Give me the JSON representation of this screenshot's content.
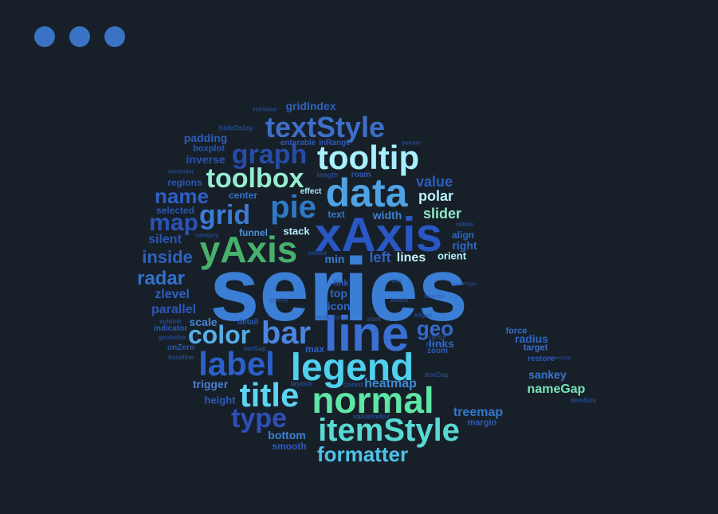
{
  "window": {
    "controls": [
      {
        "name": "window-close-dot",
        "color": "#3a73c4"
      },
      {
        "name": "window-minimize-dot",
        "color": "#3a73c4"
      },
      {
        "name": "window-maximize-dot",
        "color": "#3a73c4"
      }
    ]
  },
  "word_cloud": {
    "words": [
      {
        "text": "series",
        "color": "#3b7ed6"
      },
      {
        "text": "xAxis",
        "color": "#2957c3"
      },
      {
        "text": "data",
        "color": "#4fa3e4"
      },
      {
        "text": "line",
        "color": "#3a6fd4"
      },
      {
        "text": "legend",
        "color": "#4fd0ee"
      },
      {
        "text": "normal",
        "color": "#5ee6a7"
      },
      {
        "text": "itemStyle",
        "color": "#58d8d2"
      },
      {
        "text": "yAxis",
        "color": "#49b06c"
      },
      {
        "text": "tooltip",
        "color": "#a7f0ff"
      },
      {
        "text": "textStyle",
        "color": "#3d6fc8"
      },
      {
        "text": "label",
        "color": "#2c60c8"
      },
      {
        "text": "title",
        "color": "#5cd4f2"
      },
      {
        "text": "bar",
        "color": "#4a86e0"
      },
      {
        "text": "pie",
        "color": "#2f7ac6"
      },
      {
        "text": "color",
        "color": "#56aee8"
      },
      {
        "text": "toolbox",
        "color": "#96ecd0"
      },
      {
        "text": "type",
        "color": "#2f4fb8"
      },
      {
        "text": "grid",
        "color": "#3b7bd1"
      },
      {
        "text": "graph",
        "color": "#274ba8"
      },
      {
        "text": "formatter",
        "color": "#4fc2ea"
      },
      {
        "text": "map",
        "color": "#2a53b4"
      },
      {
        "text": "name",
        "color": "#2f5ec7"
      },
      {
        "text": "geo",
        "color": "#3569c9"
      },
      {
        "text": "radar",
        "color": "#3470cd"
      },
      {
        "text": "inside",
        "color": "#2f62c0"
      },
      {
        "text": "polar",
        "color": "#b9f2ff"
      },
      {
        "text": "slider",
        "color": "#92e7c5"
      },
      {
        "text": "value",
        "color": "#2d5ec2"
      },
      {
        "text": "heatmap",
        "color": "#3e8bd6"
      },
      {
        "text": "treemap",
        "color": "#3377cd"
      },
      {
        "text": "lines",
        "color": "#c8f3ff"
      },
      {
        "text": "left",
        "color": "#2f63c4"
      },
      {
        "text": "silent",
        "color": "#2a56b8"
      },
      {
        "text": "parallel",
        "color": "#2b57b8"
      },
      {
        "text": "zlevel",
        "color": "#2d5fbf"
      },
      {
        "text": "scale",
        "color": "#4a86d6"
      },
      {
        "text": "sankey",
        "color": "#3a76cd"
      },
      {
        "text": "nameGap",
        "color": "#78e3b8"
      },
      {
        "text": "bottom",
        "color": "#3d80d4"
      },
      {
        "text": "trigger",
        "color": "#4a7fd0"
      },
      {
        "text": "padding",
        "color": "#2d5cbb"
      },
      {
        "text": "inverse",
        "color": "#2a52b1"
      },
      {
        "text": "regions",
        "color": "#2b55b6"
      },
      {
        "text": "selected",
        "color": "#2b55b6"
      },
      {
        "text": "center",
        "color": "#3670c6"
      },
      {
        "text": "gridIndex",
        "color": "#2f62be"
      },
      {
        "text": "boxplot",
        "color": "#2d58b6"
      },
      {
        "text": "width",
        "color": "#3d7ed0"
      },
      {
        "text": "align",
        "color": "#2f67c4"
      },
      {
        "text": "right",
        "color": "#2f67c4"
      },
      {
        "text": "orient",
        "color": "#b5efff"
      },
      {
        "text": "stack",
        "color": "#b9f0ff"
      },
      {
        "text": "funnel",
        "color": "#4a90d8"
      },
      {
        "text": "min",
        "color": "#3c7bd0"
      },
      {
        "text": "max",
        "color": "#2e60c0"
      },
      {
        "text": "top",
        "color": "#2f66c3"
      },
      {
        "text": "icon",
        "color": "#2f66c3"
      },
      {
        "text": "link",
        "color": "#2b58b6"
      },
      {
        "text": "height",
        "color": "#2c5ab8"
      },
      {
        "text": "smooth",
        "color": "#2d5bb8"
      },
      {
        "text": "margin",
        "color": "#2d5bb8"
      },
      {
        "text": "zoom",
        "color": "#2d5bb8"
      },
      {
        "text": "links",
        "color": "#2f66c3"
      },
      {
        "text": "radius",
        "color": "#2f66c3"
      },
      {
        "text": "force",
        "color": "#3a6fc8"
      },
      {
        "text": "target",
        "color": "#3a6fc8"
      },
      {
        "text": "restore",
        "color": "#2c58b4"
      },
      {
        "text": "text",
        "color": "#3a78cc"
      },
      {
        "text": "effect",
        "color": "#b0eeff"
      },
      {
        "text": "roam",
        "color": "#2c58b4"
      },
      {
        "text": "length",
        "color": "#2c58b4"
      },
      {
        "text": "enterable",
        "color": "#2c58b4"
      },
      {
        "text": "hideDelay",
        "color": "#2c58b4"
      },
      {
        "text": "inRange",
        "color": "#2c58b4"
      },
      {
        "text": "detail",
        "color": "#2c58b4"
      },
      {
        "text": "realtime",
        "color": "#2c58b4"
      },
      {
        "text": "sublink",
        "color": "#2c58b4"
      },
      {
        "text": "indicator",
        "color": "#2c58b4"
      },
      {
        "text": "geoIndex",
        "color": "#2c58b4"
      },
      {
        "text": "onZero",
        "color": "#2c58b4"
      },
      {
        "text": "baseline",
        "color": "#2c58b4"
      },
      {
        "text": "barGap",
        "color": "#2c58b4"
      },
      {
        "text": "layout",
        "color": "#2c58b4"
      },
      {
        "text": "coord",
        "color": "#2c58b4"
      },
      {
        "text": "valueIndex",
        "color": "#2c58b4"
      },
      {
        "text": "nodes",
        "color": "#2c58b4"
      },
      {
        "text": "levels",
        "color": "#2c58b4"
      },
      {
        "text": "source",
        "color": "#2c58b4"
      },
      {
        "text": "start",
        "color": "#2c58b4"
      },
      {
        "text": "range",
        "color": "#2c58b4"
      },
      {
        "text": "pieces",
        "color": "#2c58b4"
      },
      {
        "text": "edges",
        "color": "#2c58b4"
      },
      {
        "text": "textGap",
        "color": "#2c58b4"
      },
      {
        "text": "itemSize",
        "color": "#2c58b4"
      },
      {
        "text": "rotate",
        "color": "#2c58b4"
      },
      {
        "text": "category",
        "color": "#2c58b4"
      },
      {
        "text": "endValue",
        "color": "#2c58b4"
      },
      {
        "text": "pointer",
        "color": "#2c58b4"
      },
      {
        "text": "axis",
        "color": "#2c58b4"
      },
      {
        "text": "gravity",
        "color": "#2c58b4"
      },
      {
        "text": "controller",
        "color": "#2c58b4"
      },
      {
        "text": "nodeClick",
        "color": "#2c58b4"
      },
      {
        "text": "brushType",
        "color": "#2c58b4"
      }
    ]
  }
}
